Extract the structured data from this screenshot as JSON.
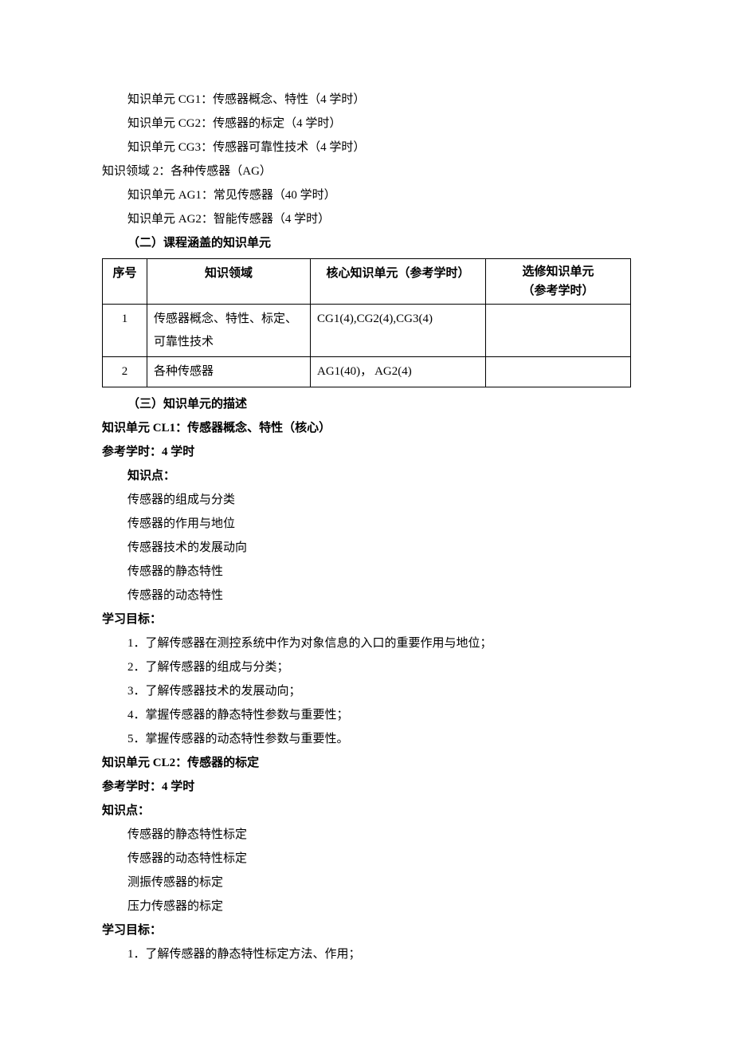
{
  "lines": {
    "cg1": "知识单元 CG1：传感器概念、特性（4 学时）",
    "cg2": "知识单元 CG2：传感器的标定（4 学时）",
    "cg3": "知识单元 CG3：传感器可靠性技术（4 学时）",
    "domain2": "知识领域 2：各种传感器（AG）",
    "ag1": "知识单元 AG1：常见传感器（40 学时）",
    "ag2": "知识单元 AG2：智能传感器（4 学时）"
  },
  "section2_heading": "（二）课程涵盖的知识单元",
  "table": {
    "headers": {
      "seq": "序号",
      "domain": "知识领域",
      "core": "核心知识单元（参考学时）",
      "elective_line1": "选修知识单元",
      "elective_line2": "（参考学时）"
    },
    "rows": [
      {
        "seq": "1",
        "domain": "传感器概念、特性、标定、可靠性技术",
        "core": "CG1(4),CG2(4),CG3(4)",
        "elective": ""
      },
      {
        "seq": "2",
        "domain": "各种传感器",
        "core": "AG1(40)， AG2(4)",
        "elective": ""
      }
    ]
  },
  "section3_heading": "（三）知识单元的描述",
  "unit_cl1": {
    "title": "知识单元 CL1：传感器概念、特性（核心）",
    "hours": "参考学时：4 学时",
    "points_label": "知识点：",
    "points": [
      "传感器的组成与分类",
      "传感器的作用与地位",
      "传感器技术的发展动向",
      "传感器的静态特性",
      "传感器的动态特性"
    ],
    "goals_label": "学习目标：",
    "goals": [
      "1．了解传感器在测控系统中作为对象信息的入口的重要作用与地位；",
      "2．了解传感器的组成与分类；",
      "3．了解传感器技术的发展动向；",
      "4．掌握传感器的静态特性参数与重要性；",
      "5．掌握传感器的动态特性参数与重要性。"
    ]
  },
  "unit_cl2": {
    "title": "知识单元 CL2：传感器的标定",
    "hours": "参考学时：4 学时",
    "points_label": "知识点：",
    "points": [
      "传感器的静态特性标定",
      "传感器的动态特性标定",
      "测振传感器的标定",
      "压力传感器的标定"
    ],
    "goals_label": "学习目标：",
    "goals": [
      "1．了解传感器的静态特性标定方法、作用；"
    ]
  }
}
